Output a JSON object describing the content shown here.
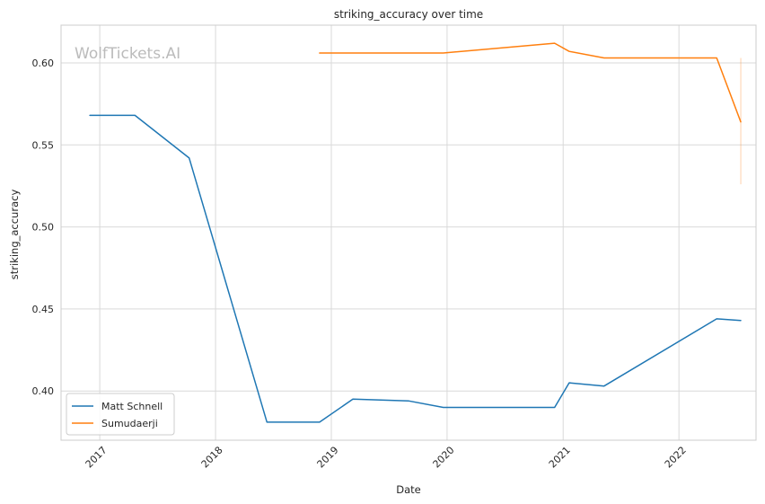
{
  "chart_data": {
    "type": "line",
    "title": "striking_accuracy over time",
    "xlabel": "Date",
    "ylabel": "striking_accuracy",
    "watermark": "WolfTickets.AI",
    "xlim": [
      "2016-09-01",
      "2022-09-01"
    ],
    "ylim": [
      0.37,
      0.623
    ],
    "x_ticks": [
      "2017-01-01",
      "2018-01-01",
      "2019-01-01",
      "2020-01-01",
      "2021-01-01",
      "2022-01-01"
    ],
    "x_tick_labels": [
      "2017",
      "2018",
      "2019",
      "2020",
      "2021",
      "2022"
    ],
    "y_ticks": [
      0.4,
      0.45,
      0.5,
      0.55,
      0.6
    ],
    "y_tick_labels": [
      "0.40",
      "0.45",
      "0.50",
      "0.55",
      "0.60"
    ],
    "grid": true,
    "legend_position": "lower-left",
    "series": [
      {
        "name": "Matt Schnell",
        "color": "#1f77b4",
        "x": [
          "2016-12-01",
          "2017-04-22",
          "2017-10-10",
          "2018-06-12",
          "2018-11-25",
          "2019-03-10",
          "2019-09-01",
          "2019-12-20",
          "2020-12-05",
          "2021-01-20",
          "2021-05-10",
          "2022-04-30",
          "2022-07-15"
        ],
        "y": [
          0.568,
          0.568,
          0.542,
          0.381,
          0.381,
          0.395,
          0.394,
          0.39,
          0.39,
          0.405,
          0.403,
          0.444,
          0.443
        ]
      },
      {
        "name": "Sumudaerji",
        "color": "#ff7f0e",
        "x": [
          "2018-11-25",
          "2019-12-20",
          "2020-12-05",
          "2021-01-20",
          "2021-05-10",
          "2022-04-30",
          "2022-07-15"
        ],
        "y": [
          0.606,
          0.606,
          0.612,
          0.607,
          0.603,
          0.603,
          0.564
        ]
      }
    ],
    "error_band": {
      "series": "Sumudaerji",
      "x": "2022-07-15",
      "y_low": 0.526,
      "y_high": 0.603
    }
  }
}
